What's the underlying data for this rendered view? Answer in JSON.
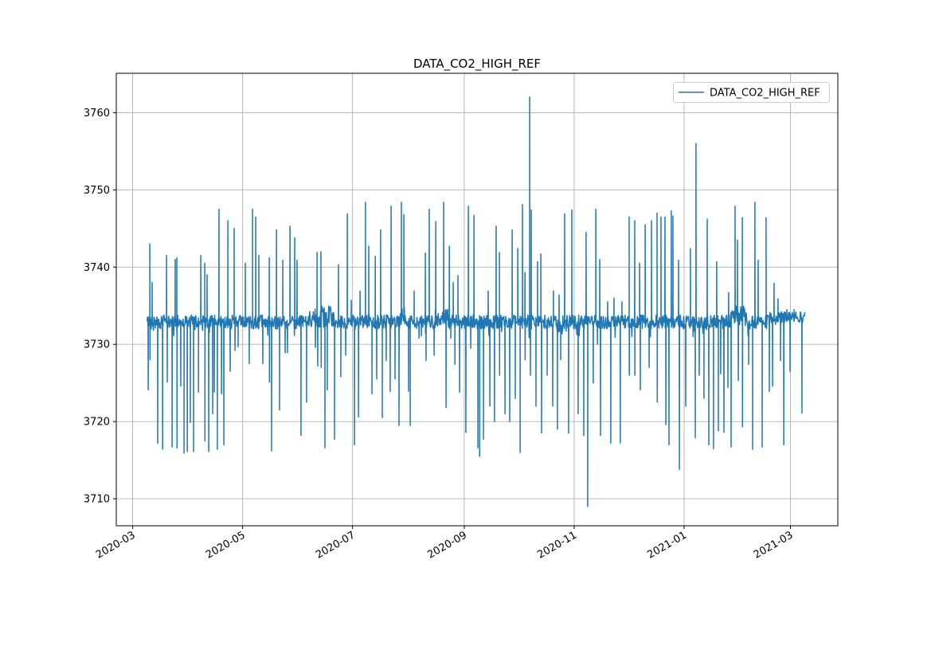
{
  "figure": {
    "title": "DATA_CO2_HIGH_REF",
    "background_color": "#ffffff"
  },
  "chart_data": {
    "type": "line",
    "title": "DATA_CO2_HIGH_REF",
    "legend": {
      "position": "upper right",
      "entries": [
        {
          "label": "DATA_CO2_HIGH_REF",
          "color": "#1f77b4"
        }
      ]
    },
    "grid": true,
    "grid_color": "#b0b0b0",
    "axis_color": "#000000",
    "line_color": "#1f77b4",
    "line_width": 1.5,
    "x_axis": {
      "tick_labels": [
        "2020-03",
        "2020-05",
        "2020-07",
        "2020-09",
        "2020-11",
        "2021-01",
        "2021-03"
      ],
      "tick_rotation_deg": 30,
      "day_zero": "2020-03-01"
    },
    "y_ticks": [
      3710,
      3720,
      3730,
      3740,
      3750,
      3760
    ],
    "ylim": [
      3706.5,
      3765.1
    ],
    "xlim_days": [
      -9.1,
      391.3
    ],
    "series_start_day": 8,
    "series_end_day": 373,
    "samples_per_day": 4,
    "noise_seed": 42,
    "y_max": 3762,
    "y_min": 3709,
    "baseline_band": {
      "low": 3732.0,
      "high": 3733.8,
      "mean": 3733
    },
    "band_segments": [
      {
        "from": 98,
        "to": 112,
        "low": 3732.2,
        "high": 3735.0
      },
      {
        "from": 148.5,
        "to": 151.5,
        "low": 3732.5,
        "high": 3734.8
      },
      {
        "from": 168,
        "to": 175,
        "low": 3732.3,
        "high": 3734.6
      },
      {
        "from": 235.5,
        "to": 238.5,
        "low": 3731.3,
        "high": 3733.2
      },
      {
        "from": 332,
        "to": 341,
        "low": 3732.5,
        "high": 3735.0
      },
      {
        "from": 352,
        "to": 373,
        "low": 3732.8,
        "high": 3734.2
      }
    ],
    "spikes_up": [
      [
        9.5,
        3743
      ],
      [
        10.8,
        3738
      ],
      [
        18.8,
        3741.5
      ],
      [
        23.6,
        3741
      ],
      [
        24.5,
        3741.2
      ],
      [
        37.8,
        3741.5
      ],
      [
        40,
        3740.5
      ],
      [
        41.3,
        3739
      ],
      [
        47.9,
        3747.5
      ],
      [
        52.8,
        3746
      ],
      [
        56.3,
        3745
      ],
      [
        62.5,
        3740.5
      ],
      [
        66.5,
        3747.5
      ],
      [
        68.3,
        3746.5
      ],
      [
        70,
        3741.5
      ],
      [
        75.8,
        3741.2
      ],
      [
        79.8,
        3744.8
      ],
      [
        83.3,
        3740.9
      ],
      [
        87.3,
        3745.3
      ],
      [
        89.9,
        3743.8
      ],
      [
        91.2,
        3740.9
      ],
      [
        102.3,
        3741.9
      ],
      [
        104.5,
        3742
      ],
      [
        114.2,
        3740.3
      ],
      [
        119.1,
        3746.9
      ],
      [
        121.3,
        3735.7
      ],
      [
        126.2,
        3736.9
      ],
      [
        129.2,
        3748.4
      ],
      [
        131,
        3742.7
      ],
      [
        134.6,
        3741.4
      ],
      [
        137.6,
        3744.8
      ],
      [
        143.4,
        3747.9
      ],
      [
        149.1,
        3748.4
      ],
      [
        150.5,
        3746.8
      ],
      [
        156.2,
        3736.9
      ],
      [
        162.4,
        3741.8
      ],
      [
        164.6,
        3747.5
      ],
      [
        168.2,
        3745.9
      ],
      [
        172.6,
        3748.4
      ],
      [
        175.7,
        3742.7
      ],
      [
        177.9,
        3738
      ],
      [
        180.5,
        3738.9
      ],
      [
        186.3,
        3747.9
      ],
      [
        189.4,
        3746.7
      ],
      [
        197.3,
        3736.9
      ],
      [
        201.7,
        3745.3
      ],
      [
        203.5,
        3741.9
      ],
      [
        210.6,
        3744.8
      ],
      [
        213.7,
        3742.4
      ],
      [
        216.3,
        3748.1
      ],
      [
        217.7,
        3739.3
      ],
      [
        220.3,
        3762
      ],
      [
        221.2,
        3747.4
      ],
      [
        224.7,
        3740.7
      ],
      [
        226.5,
        3741.7
      ],
      [
        233.5,
        3736.9
      ],
      [
        236.6,
        3736.4
      ],
      [
        239.7,
        3746.9
      ],
      [
        243.7,
        3747.4
      ],
      [
        251.6,
        3744.5
      ],
      [
        257,
        3747.5
      ],
      [
        259.2,
        3741
      ],
      [
        263.6,
        3735.5
      ],
      [
        267.1,
        3736
      ],
      [
        271.5,
        3735.5
      ],
      [
        275.5,
        3746.5
      ],
      [
        278.6,
        3746
      ],
      [
        281.3,
        3740.5
      ],
      [
        284.4,
        3745.5
      ],
      [
        287.9,
        3746
      ],
      [
        291,
        3747
      ],
      [
        293.2,
        3746.5
      ],
      [
        295.4,
        3746.5
      ],
      [
        298.9,
        3747.3
      ],
      [
        299.8,
        3746.6
      ],
      [
        302.9,
        3740.9
      ],
      [
        309.5,
        3742.4
      ],
      [
        312.6,
        3756
      ],
      [
        318.8,
        3746.2
      ],
      [
        324.1,
        3740.7
      ],
      [
        330.7,
        3736.7
      ],
      [
        334.3,
        3747.9
      ],
      [
        335.6,
        3743.5
      ],
      [
        338.3,
        3746.4
      ],
      [
        345.3,
        3748.4
      ],
      [
        347.1,
        3740.9
      ],
      [
        351.5,
        3746.4
      ],
      [
        355.9,
        3737.9
      ],
      [
        358.1,
        3735.9
      ],
      [
        363,
        3734.5
      ],
      [
        367,
        3734.5
      ]
    ],
    "spikes_down": [
      [
        8.6,
        3724.1
      ],
      [
        9.6,
        3728
      ],
      [
        13.9,
        3717.2
      ],
      [
        16.6,
        3716.4
      ],
      [
        19.2,
        3725.1
      ],
      [
        21.9,
        3716.7
      ],
      [
        24.6,
        3716.6
      ],
      [
        26.7,
        3724.6
      ],
      [
        28.5,
        3715.9
      ],
      [
        30.3,
        3716.1
      ],
      [
        32,
        3719.9
      ],
      [
        33.8,
        3716.1
      ],
      [
        36.5,
        3723.8
      ],
      [
        40.1,
        3717.5
      ],
      [
        42.2,
        3716.1
      ],
      [
        44.4,
        3721
      ],
      [
        45.3,
        3723.8
      ],
      [
        47,
        3716.4
      ],
      [
        49.3,
        3723.6
      ],
      [
        50.6,
        3717
      ],
      [
        54.1,
        3726.5
      ],
      [
        56.8,
        3729.2
      ],
      [
        58.5,
        3729.7
      ],
      [
        64.7,
        3727.5
      ],
      [
        72.2,
        3727.5
      ],
      [
        75.9,
        3725.1
      ],
      [
        77.1,
        3716.2
      ],
      [
        81.5,
        3721.5
      ],
      [
        84.6,
        3728.9
      ],
      [
        85.9,
        3728.9
      ],
      [
        93.4,
        3718.2
      ],
      [
        96.5,
        3722.5
      ],
      [
        101.4,
        3729.6
      ],
      [
        102.7,
        3727.2
      ],
      [
        104.6,
        3727
      ],
      [
        106.7,
        3716.6
      ],
      [
        108,
        3724.1
      ],
      [
        112,
        3717.7
      ],
      [
        115.5,
        3725.8
      ],
      [
        118.2,
        3728.6
      ],
      [
        123.1,
        3717
      ],
      [
        125.3,
        3720.6
      ],
      [
        132.8,
        3723.6
      ],
      [
        135.4,
        3725.5
      ],
      [
        138.5,
        3720.5
      ],
      [
        140.7,
        3727.9
      ],
      [
        142.9,
        3723.9
      ],
      [
        145.6,
        3725.5
      ],
      [
        147.8,
        3719.5
      ],
      [
        153.1,
        3723.9
      ],
      [
        154,
        3719.5
      ],
      [
        158.9,
        3730.8
      ],
      [
        160.2,
        3731.1
      ],
      [
        162.8,
        3727.9
      ],
      [
        167.3,
        3728.6
      ],
      [
        173.9,
        3721.8
      ],
      [
        176.5,
        3730.8
      ],
      [
        178.8,
        3727.4
      ],
      [
        181.4,
        3723.8
      ],
      [
        184.9,
        3718.6
      ],
      [
        187.6,
        3729.5
      ],
      [
        191.6,
        3716.6
      ],
      [
        192.5,
        3715.5
      ],
      [
        194.7,
        3717.7
      ],
      [
        198.2,
        3722
      ],
      [
        200.8,
        3720
      ],
      [
        203.6,
        3726
      ],
      [
        206.6,
        3721
      ],
      [
        209.2,
        3720
      ],
      [
        212.3,
        3723
      ],
      [
        215,
        3716
      ],
      [
        217.8,
        3728
      ],
      [
        220.7,
        3726
      ],
      [
        223.8,
        3722
      ],
      [
        226.9,
        3718.5
      ],
      [
        230,
        3726
      ],
      [
        233.1,
        3722
      ],
      [
        235.7,
        3719
      ],
      [
        237.5,
        3728
      ],
      [
        241.9,
        3718.5
      ],
      [
        247.2,
        3721
      ],
      [
        250.3,
        3718.2
      ],
      [
        252.5,
        3709
      ],
      [
        255.6,
        3725
      ],
      [
        257.9,
        3730
      ],
      [
        259.6,
        3718.2
      ],
      [
        265.3,
        3717.2
      ],
      [
        270.6,
        3717.2
      ],
      [
        275.6,
        3726
      ],
      [
        278.7,
        3726
      ],
      [
        281.7,
        3724.1
      ],
      [
        286.6,
        3727
      ],
      [
        291.1,
        3722.5
      ],
      [
        295.9,
        3719.6
      ],
      [
        297.6,
        3717
      ],
      [
        303.4,
        3713.8
      ],
      [
        306.9,
        3722
      ],
      [
        312.2,
        3717.9
      ],
      [
        314.4,
        3726
      ],
      [
        317,
        3723
      ],
      [
        319.7,
        3717
      ],
      [
        322.3,
        3716.5
      ],
      [
        325,
        3718.8
      ],
      [
        326.3,
        3726.2
      ],
      [
        328.1,
        3718.6
      ],
      [
        330.3,
        3724.4
      ],
      [
        332.1,
        3716.7
      ],
      [
        336.1,
        3725.3
      ],
      [
        338.4,
        3719.3
      ],
      [
        341.8,
        3727.4
      ],
      [
        344,
        3716.4
      ],
      [
        349.3,
        3716.7
      ],
      [
        353.3,
        3723.9
      ],
      [
        355.1,
        3724.6
      ],
      [
        359.5,
        3727.9
      ],
      [
        361.3,
        3717
      ],
      [
        364.8,
        3726.5
      ],
      [
        371.4,
        3721.1
      ]
    ]
  }
}
